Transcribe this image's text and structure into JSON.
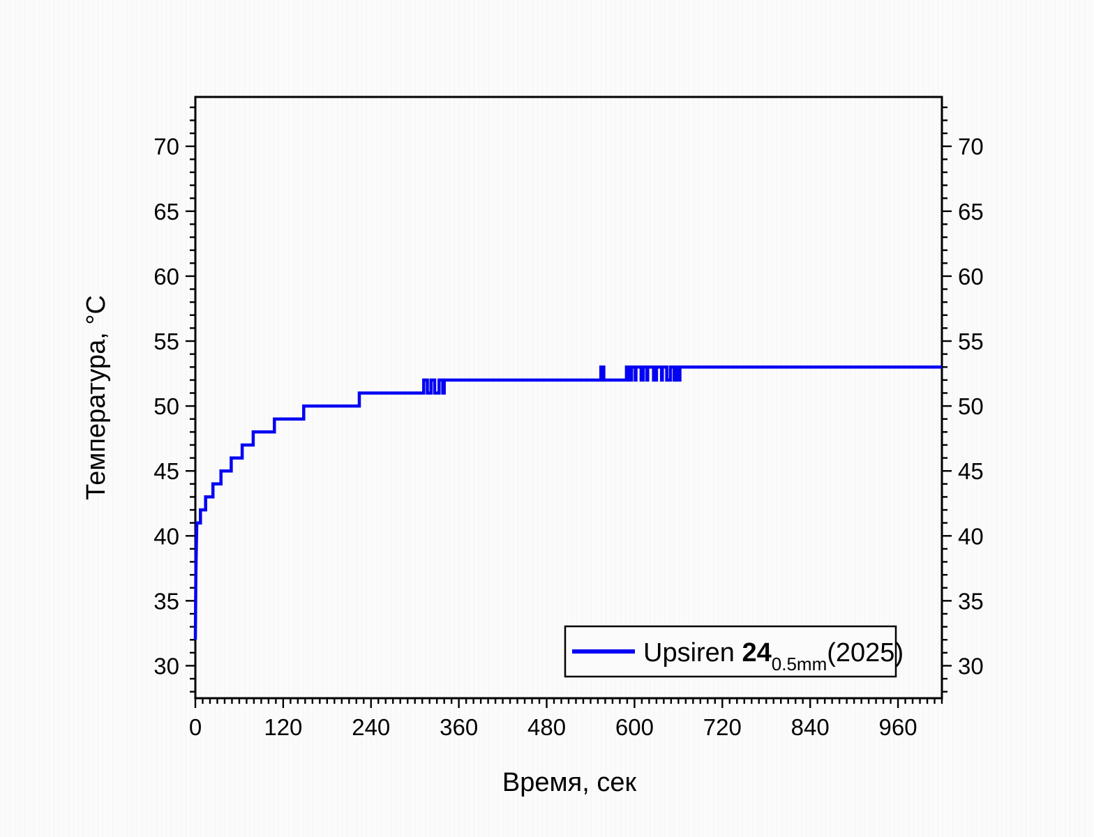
{
  "chart_data": {
    "type": "line",
    "title": "",
    "xlabel": "Время, сек",
    "ylabel": "Температура, °C",
    "xlim": [
      0,
      1020
    ],
    "ylim": [
      27.5,
      73.8
    ],
    "x_major_ticks": [
      0,
      120,
      240,
      360,
      480,
      600,
      720,
      840,
      960
    ],
    "x_minor_step": 10,
    "y_major_ticks": [
      30,
      35,
      40,
      45,
      50,
      55,
      60,
      65,
      70
    ],
    "y_minor_step": 1,
    "grid": false,
    "mirrored_y_axis_labels": true,
    "ticks_direction": "out",
    "legend": {
      "position": "bottom-right",
      "label": "Upsiren 24 0.5mm (2025)",
      "prefix": "Upsiren ",
      "bold": "24",
      "subscript": "0.5mm",
      "suffix": "(2025)"
    },
    "colors": {
      "line": "#0402f2",
      "axis": "#000000",
      "text": "#000000",
      "legend_fill": "#fbfbfb"
    },
    "series": [
      {
        "name": "Upsiren 24 0.5mm (2025)",
        "points": [
          [
            0,
            32
          ],
          [
            0.7,
            37
          ],
          [
            1.4,
            39.5
          ],
          [
            2,
            41
          ],
          [
            7,
            41
          ],
          [
            7,
            42
          ],
          [
            14,
            42
          ],
          [
            14,
            43
          ],
          [
            24,
            43
          ],
          [
            24,
            44
          ],
          [
            35,
            44
          ],
          [
            35,
            45
          ],
          [
            49,
            45
          ],
          [
            49,
            46
          ],
          [
            64,
            46
          ],
          [
            64,
            47
          ],
          [
            79,
            47
          ],
          [
            79,
            48
          ],
          [
            108,
            48
          ],
          [
            108,
            49
          ],
          [
            148,
            49
          ],
          [
            148,
            50
          ],
          [
            224,
            50
          ],
          [
            224,
            51
          ],
          [
            312,
            51
          ],
          [
            312,
            52
          ],
          [
            317,
            52
          ],
          [
            317,
            51
          ],
          [
            322,
            51
          ],
          [
            322,
            52
          ],
          [
            327,
            52
          ],
          [
            327,
            51
          ],
          [
            333,
            51
          ],
          [
            333,
            52
          ],
          [
            338,
            52
          ],
          [
            338,
            51
          ],
          [
            340,
            51
          ],
          [
            340,
            52
          ],
          [
            554,
            52
          ],
          [
            554,
            53
          ],
          [
            558,
            53
          ],
          [
            558,
            52
          ],
          [
            589,
            52
          ],
          [
            589,
            53
          ],
          [
            592,
            53
          ],
          [
            592,
            52
          ],
          [
            596,
            52
          ],
          [
            596,
            53
          ],
          [
            601,
            53
          ],
          [
            601,
            52
          ],
          [
            602,
            52
          ],
          [
            602,
            53
          ],
          [
            609,
            53
          ],
          [
            609,
            52
          ],
          [
            612,
            52
          ],
          [
            612,
            53
          ],
          [
            617,
            53
          ],
          [
            617,
            52
          ],
          [
            618,
            52
          ],
          [
            618,
            53
          ],
          [
            626,
            53
          ],
          [
            626,
            52
          ],
          [
            630,
            52
          ],
          [
            630,
            53
          ],
          [
            637,
            53
          ],
          [
            637,
            52
          ],
          [
            638,
            52
          ],
          [
            638,
            53
          ],
          [
            644,
            53
          ],
          [
            644,
            52
          ],
          [
            649,
            52
          ],
          [
            649,
            53
          ],
          [
            654,
            53
          ],
          [
            654,
            52
          ],
          [
            655,
            52
          ],
          [
            655,
            53
          ],
          [
            659,
            53
          ],
          [
            659,
            52
          ],
          [
            662,
            52
          ],
          [
            662,
            53
          ],
          [
            1020,
            53
          ]
        ]
      }
    ]
  }
}
